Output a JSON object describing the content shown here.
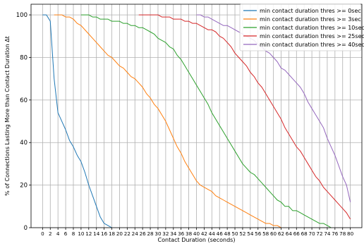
{
  "chart_data": {
    "type": "line",
    "xlabel": "Contact Duration (seconds)",
    "ylabel": "% of Connections Lasting More than Contact Duration Δt",
    "xlim": [
      -3,
      83
    ],
    "ylim": [
      0,
      105
    ],
    "xticks": [
      0,
      2,
      4,
      6,
      8,
      10,
      12,
      14,
      16,
      18,
      20,
      22,
      24,
      26,
      28,
      30,
      32,
      34,
      36,
      38,
      40,
      42,
      44,
      46,
      48,
      50,
      52,
      54,
      56,
      58,
      60,
      62,
      64,
      66,
      68,
      70,
      72,
      74,
      76,
      78,
      80
    ],
    "yticks": [
      0,
      20,
      40,
      60,
      80,
      100
    ],
    "grid": true,
    "legend_position": "top-right",
    "series": [
      {
        "name": "min contact duration thres >= 0sec",
        "color": "#1f77b4",
        "x": [
          0,
          1,
          2,
          3,
          4,
          5,
          6,
          7,
          8,
          9,
          10,
          11,
          12,
          13,
          14,
          15,
          16,
          17,
          18
        ],
        "y": [
          100,
          100,
          97,
          70,
          54,
          50,
          46,
          41,
          38,
          34,
          31,
          26,
          20,
          15,
          10,
          5,
          2,
          1,
          0
        ]
      },
      {
        "name": "min contact duration thres >= 3sec",
        "color": "#ff7f0e",
        "x": [
          3,
          4,
          5,
          6,
          7,
          8,
          9,
          10,
          11,
          12,
          13,
          14,
          15,
          16,
          17,
          18,
          19,
          20,
          21,
          22,
          23,
          24,
          25,
          26,
          27,
          28,
          29,
          30,
          31,
          32,
          33,
          34,
          35,
          36,
          37,
          38,
          39,
          40,
          41,
          42,
          43,
          44,
          45,
          46,
          47,
          48,
          49,
          50,
          51,
          52,
          53,
          54,
          55,
          56,
          57,
          58,
          59,
          60,
          61,
          62
        ],
        "y": [
          100,
          100,
          100,
          99,
          99,
          98,
          96,
          95,
          93,
          91,
          89,
          87,
          85,
          83,
          81,
          80,
          78,
          76,
          75,
          73,
          71,
          70,
          68,
          66,
          63,
          61,
          58,
          56,
          53,
          50,
          46,
          42,
          38,
          35,
          31,
          28,
          25,
          22,
          20,
          19,
          18,
          17,
          15,
          14,
          13,
          12,
          11,
          10,
          9,
          8,
          7,
          6,
          5,
          4,
          3,
          2,
          2,
          1,
          1,
          0
        ]
      },
      {
        "name": "min contact duration thres >= 10sec",
        "color": "#2ca02c",
        "x": [
          10,
          11,
          12,
          13,
          14,
          15,
          16,
          17,
          18,
          19,
          20,
          21,
          22,
          23,
          24,
          25,
          26,
          27,
          28,
          29,
          30,
          31,
          32,
          33,
          34,
          35,
          36,
          37,
          38,
          39,
          40,
          41,
          42,
          43,
          44,
          45,
          46,
          47,
          48,
          49,
          50,
          51,
          52,
          53,
          54,
          55,
          56,
          57,
          58,
          59,
          60,
          61,
          62,
          63,
          64,
          65,
          66,
          67,
          68,
          69,
          70,
          71,
          72,
          73,
          74,
          75
        ],
        "y": [
          100,
          100,
          100,
          99,
          99,
          98,
          98,
          98,
          97,
          97,
          97,
          96,
          96,
          95,
          95,
          94,
          94,
          93,
          92,
          91,
          89,
          88,
          87,
          85,
          84,
          81,
          79,
          76,
          73,
          70,
          67,
          64,
          61,
          58,
          54,
          51,
          48,
          45,
          42,
          39,
          36,
          33,
          30,
          28,
          26,
          25,
          23,
          21,
          19,
          17,
          15,
          13,
          12,
          10,
          10,
          8,
          8,
          7,
          6,
          5,
          4,
          3,
          2,
          2,
          1,
          0
        ]
      },
      {
        "name": "min contact duration thres >= 25sec",
        "color": "#d62728",
        "x": [
          25,
          26,
          27,
          28,
          29,
          30,
          31,
          32,
          33,
          34,
          35,
          36,
          37,
          38,
          39,
          40,
          41,
          42,
          43,
          44,
          45,
          46,
          47,
          48,
          49,
          50,
          51,
          52,
          53,
          54,
          55,
          56,
          57,
          58,
          59,
          60,
          61,
          62,
          63,
          64,
          65,
          66,
          67,
          68,
          69,
          70,
          71,
          72,
          73,
          74,
          75,
          76,
          77,
          78,
          79,
          80
        ],
        "y": [
          100,
          100,
          100,
          100,
          100,
          100,
          99,
          99,
          99,
          98,
          98,
          98,
          97,
          97,
          96,
          96,
          95,
          94,
          93,
          93,
          92,
          90,
          89,
          87,
          85,
          82,
          80,
          78,
          76,
          73,
          71,
          68,
          66,
          63,
          60,
          57,
          54,
          51,
          47,
          44,
          41,
          38,
          36,
          33,
          30,
          27,
          24,
          22,
          19,
          17,
          15,
          13,
          11,
          9,
          7,
          4
        ]
      },
      {
        "name": "min contact duration thres >= 40sec",
        "color": "#9467bd",
        "x": [
          40,
          41,
          42,
          43,
          44,
          45,
          46,
          47,
          48,
          49,
          50,
          51,
          52,
          53,
          54,
          55,
          56,
          57,
          58,
          59,
          60,
          61,
          62,
          63,
          64,
          65,
          66,
          67,
          68,
          69,
          70,
          71,
          72,
          73,
          74,
          75,
          76,
          77,
          78,
          79,
          80
        ],
        "y": [
          100,
          100,
          99,
          99,
          98,
          97,
          96,
          95,
          95,
          94,
          93,
          92,
          91,
          90,
          89,
          88,
          86,
          85,
          83,
          82,
          80,
          78,
          75,
          74,
          72,
          70,
          68,
          66,
          63,
          59,
          56,
          53,
          50,
          47,
          42,
          38,
          34,
          29,
          24,
          20,
          12
        ]
      }
    ]
  }
}
